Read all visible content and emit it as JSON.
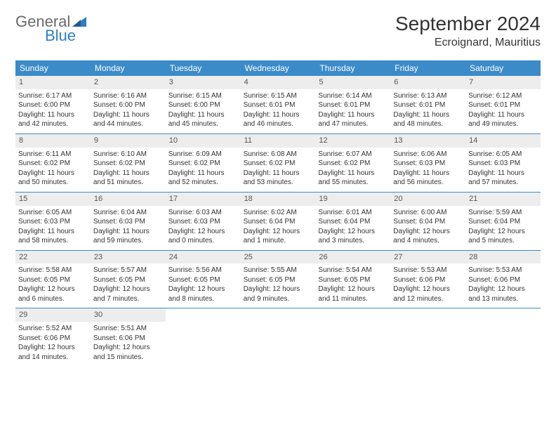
{
  "logo": {
    "word1": "General",
    "word2": "Blue"
  },
  "title": "September 2024",
  "location": "Ecroignard, Mauritius",
  "colors": {
    "header_bg": "#3b8bc9",
    "header_text": "#ffffff",
    "daynum_bg": "#ededed",
    "border": "#3b8bc9",
    "logo_gray": "#6a6a6a",
    "logo_blue": "#2f7fc2"
  },
  "weekdays": [
    "Sunday",
    "Monday",
    "Tuesday",
    "Wednesday",
    "Thursday",
    "Friday",
    "Saturday"
  ],
  "weeks": [
    [
      {
        "n": "1",
        "sunrise": "Sunrise: 6:17 AM",
        "sunset": "Sunset: 6:00 PM",
        "day1": "Daylight: 11 hours",
        "day2": "and 42 minutes."
      },
      {
        "n": "2",
        "sunrise": "Sunrise: 6:16 AM",
        "sunset": "Sunset: 6:00 PM",
        "day1": "Daylight: 11 hours",
        "day2": "and 44 minutes."
      },
      {
        "n": "3",
        "sunrise": "Sunrise: 6:15 AM",
        "sunset": "Sunset: 6:00 PM",
        "day1": "Daylight: 11 hours",
        "day2": "and 45 minutes."
      },
      {
        "n": "4",
        "sunrise": "Sunrise: 6:15 AM",
        "sunset": "Sunset: 6:01 PM",
        "day1": "Daylight: 11 hours",
        "day2": "and 46 minutes."
      },
      {
        "n": "5",
        "sunrise": "Sunrise: 6:14 AM",
        "sunset": "Sunset: 6:01 PM",
        "day1": "Daylight: 11 hours",
        "day2": "and 47 minutes."
      },
      {
        "n": "6",
        "sunrise": "Sunrise: 6:13 AM",
        "sunset": "Sunset: 6:01 PM",
        "day1": "Daylight: 11 hours",
        "day2": "and 48 minutes."
      },
      {
        "n": "7",
        "sunrise": "Sunrise: 6:12 AM",
        "sunset": "Sunset: 6:01 PM",
        "day1": "Daylight: 11 hours",
        "day2": "and 49 minutes."
      }
    ],
    [
      {
        "n": "8",
        "sunrise": "Sunrise: 6:11 AM",
        "sunset": "Sunset: 6:02 PM",
        "day1": "Daylight: 11 hours",
        "day2": "and 50 minutes."
      },
      {
        "n": "9",
        "sunrise": "Sunrise: 6:10 AM",
        "sunset": "Sunset: 6:02 PM",
        "day1": "Daylight: 11 hours",
        "day2": "and 51 minutes."
      },
      {
        "n": "10",
        "sunrise": "Sunrise: 6:09 AM",
        "sunset": "Sunset: 6:02 PM",
        "day1": "Daylight: 11 hours",
        "day2": "and 52 minutes."
      },
      {
        "n": "11",
        "sunrise": "Sunrise: 6:08 AM",
        "sunset": "Sunset: 6:02 PM",
        "day1": "Daylight: 11 hours",
        "day2": "and 53 minutes."
      },
      {
        "n": "12",
        "sunrise": "Sunrise: 6:07 AM",
        "sunset": "Sunset: 6:02 PM",
        "day1": "Daylight: 11 hours",
        "day2": "and 55 minutes."
      },
      {
        "n": "13",
        "sunrise": "Sunrise: 6:06 AM",
        "sunset": "Sunset: 6:03 PM",
        "day1": "Daylight: 11 hours",
        "day2": "and 56 minutes."
      },
      {
        "n": "14",
        "sunrise": "Sunrise: 6:05 AM",
        "sunset": "Sunset: 6:03 PM",
        "day1": "Daylight: 11 hours",
        "day2": "and 57 minutes."
      }
    ],
    [
      {
        "n": "15",
        "sunrise": "Sunrise: 6:05 AM",
        "sunset": "Sunset: 6:03 PM",
        "day1": "Daylight: 11 hours",
        "day2": "and 58 minutes."
      },
      {
        "n": "16",
        "sunrise": "Sunrise: 6:04 AM",
        "sunset": "Sunset: 6:03 PM",
        "day1": "Daylight: 11 hours",
        "day2": "and 59 minutes."
      },
      {
        "n": "17",
        "sunrise": "Sunrise: 6:03 AM",
        "sunset": "Sunset: 6:03 PM",
        "day1": "Daylight: 12 hours",
        "day2": "and 0 minutes."
      },
      {
        "n": "18",
        "sunrise": "Sunrise: 6:02 AM",
        "sunset": "Sunset: 6:04 PM",
        "day1": "Daylight: 12 hours",
        "day2": "and 1 minute."
      },
      {
        "n": "19",
        "sunrise": "Sunrise: 6:01 AM",
        "sunset": "Sunset: 6:04 PM",
        "day1": "Daylight: 12 hours",
        "day2": "and 3 minutes."
      },
      {
        "n": "20",
        "sunrise": "Sunrise: 6:00 AM",
        "sunset": "Sunset: 6:04 PM",
        "day1": "Daylight: 12 hours",
        "day2": "and 4 minutes."
      },
      {
        "n": "21",
        "sunrise": "Sunrise: 5:59 AM",
        "sunset": "Sunset: 6:04 PM",
        "day1": "Daylight: 12 hours",
        "day2": "and 5 minutes."
      }
    ],
    [
      {
        "n": "22",
        "sunrise": "Sunrise: 5:58 AM",
        "sunset": "Sunset: 6:05 PM",
        "day1": "Daylight: 12 hours",
        "day2": "and 6 minutes."
      },
      {
        "n": "23",
        "sunrise": "Sunrise: 5:57 AM",
        "sunset": "Sunset: 6:05 PM",
        "day1": "Daylight: 12 hours",
        "day2": "and 7 minutes."
      },
      {
        "n": "24",
        "sunrise": "Sunrise: 5:56 AM",
        "sunset": "Sunset: 6:05 PM",
        "day1": "Daylight: 12 hours",
        "day2": "and 8 minutes."
      },
      {
        "n": "25",
        "sunrise": "Sunrise: 5:55 AM",
        "sunset": "Sunset: 6:05 PM",
        "day1": "Daylight: 12 hours",
        "day2": "and 9 minutes."
      },
      {
        "n": "26",
        "sunrise": "Sunrise: 5:54 AM",
        "sunset": "Sunset: 6:05 PM",
        "day1": "Daylight: 12 hours",
        "day2": "and 11 minutes."
      },
      {
        "n": "27",
        "sunrise": "Sunrise: 5:53 AM",
        "sunset": "Sunset: 6:06 PM",
        "day1": "Daylight: 12 hours",
        "day2": "and 12 minutes."
      },
      {
        "n": "28",
        "sunrise": "Sunrise: 5:53 AM",
        "sunset": "Sunset: 6:06 PM",
        "day1": "Daylight: 12 hours",
        "day2": "and 13 minutes."
      }
    ],
    [
      {
        "n": "29",
        "sunrise": "Sunrise: 5:52 AM",
        "sunset": "Sunset: 6:06 PM",
        "day1": "Daylight: 12 hours",
        "day2": "and 14 minutes."
      },
      {
        "n": "30",
        "sunrise": "Sunrise: 5:51 AM",
        "sunset": "Sunset: 6:06 PM",
        "day1": "Daylight: 12 hours",
        "day2": "and 15 minutes."
      },
      null,
      null,
      null,
      null,
      null
    ]
  ]
}
